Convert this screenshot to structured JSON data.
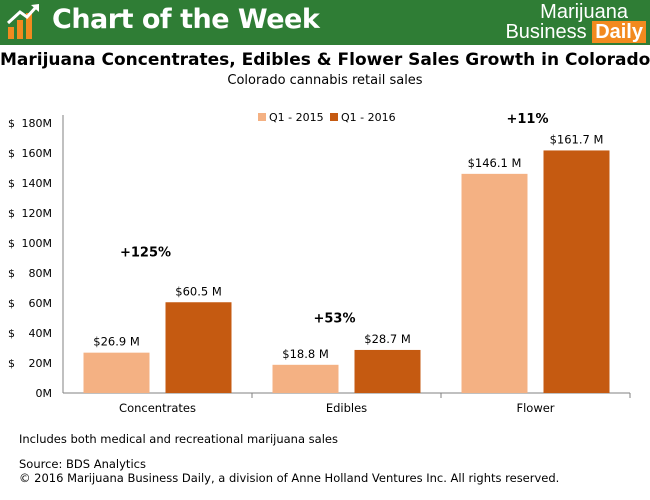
{
  "banner": {
    "title": "Chart of the Week",
    "brand_line1": "Marijuana",
    "brand_line2a": "Business",
    "brand_line2b": "Daily",
    "logo_icon": "bar-chart-arrow-icon"
  },
  "chart_data": {
    "type": "bar",
    "title": "Marijuana Concentrates, Edibles & Flower Sales Growth in Colorado",
    "subtitle": "Colorado cannabis retail sales",
    "categories": [
      "Concentrates",
      "Edibles",
      "Flower"
    ],
    "series": [
      {
        "name": "Q1 - 2015",
        "values": [
          26.9,
          18.8,
          146.1
        ],
        "labels": [
          "$26.9 M",
          "$18.8 M",
          "$146.1 M"
        ]
      },
      {
        "name": "Q1 - 2016",
        "values": [
          60.5,
          28.7,
          161.7
        ],
        "labels": [
          "$60.5 M",
          "$28.7 M",
          "$161.7 M"
        ]
      }
    ],
    "growth_labels": [
      "+125%",
      "+53%",
      "+11%"
    ],
    "ylim": [
      0,
      180
    ],
    "yticks": [
      {
        "value": 0,
        "dollar": "",
        "label": "0M"
      },
      {
        "value": 20,
        "dollar": "$",
        "label": "20M"
      },
      {
        "value": 40,
        "dollar": "$",
        "label": "40M"
      },
      {
        "value": 60,
        "dollar": "$",
        "label": "60M"
      },
      {
        "value": 80,
        "dollar": "$",
        "label": "80M"
      },
      {
        "value": 100,
        "dollar": "$",
        "label": "100M"
      },
      {
        "value": 120,
        "dollar": "$",
        "label": "120M"
      },
      {
        "value": 140,
        "dollar": "$",
        "label": "140M"
      },
      {
        "value": 160,
        "dollar": "$",
        "label": "160M"
      },
      {
        "value": 180,
        "dollar": "$",
        "label": "180M"
      }
    ],
    "grid": false,
    "legend_position": "top-center",
    "colors": {
      "series_2015": "#f4b183",
      "series_2016": "#c55a11",
      "banner": "#2f7d35",
      "brand_accent": "#f28a1f"
    }
  },
  "footnotes": {
    "note": "Includes both medical and recreational marijuana sales",
    "source": "Source: BDS Analytics",
    "copyright": "© 2016 Marijuana Business Daily, a division of Anne Holland Ventures Inc. All rights reserved."
  }
}
